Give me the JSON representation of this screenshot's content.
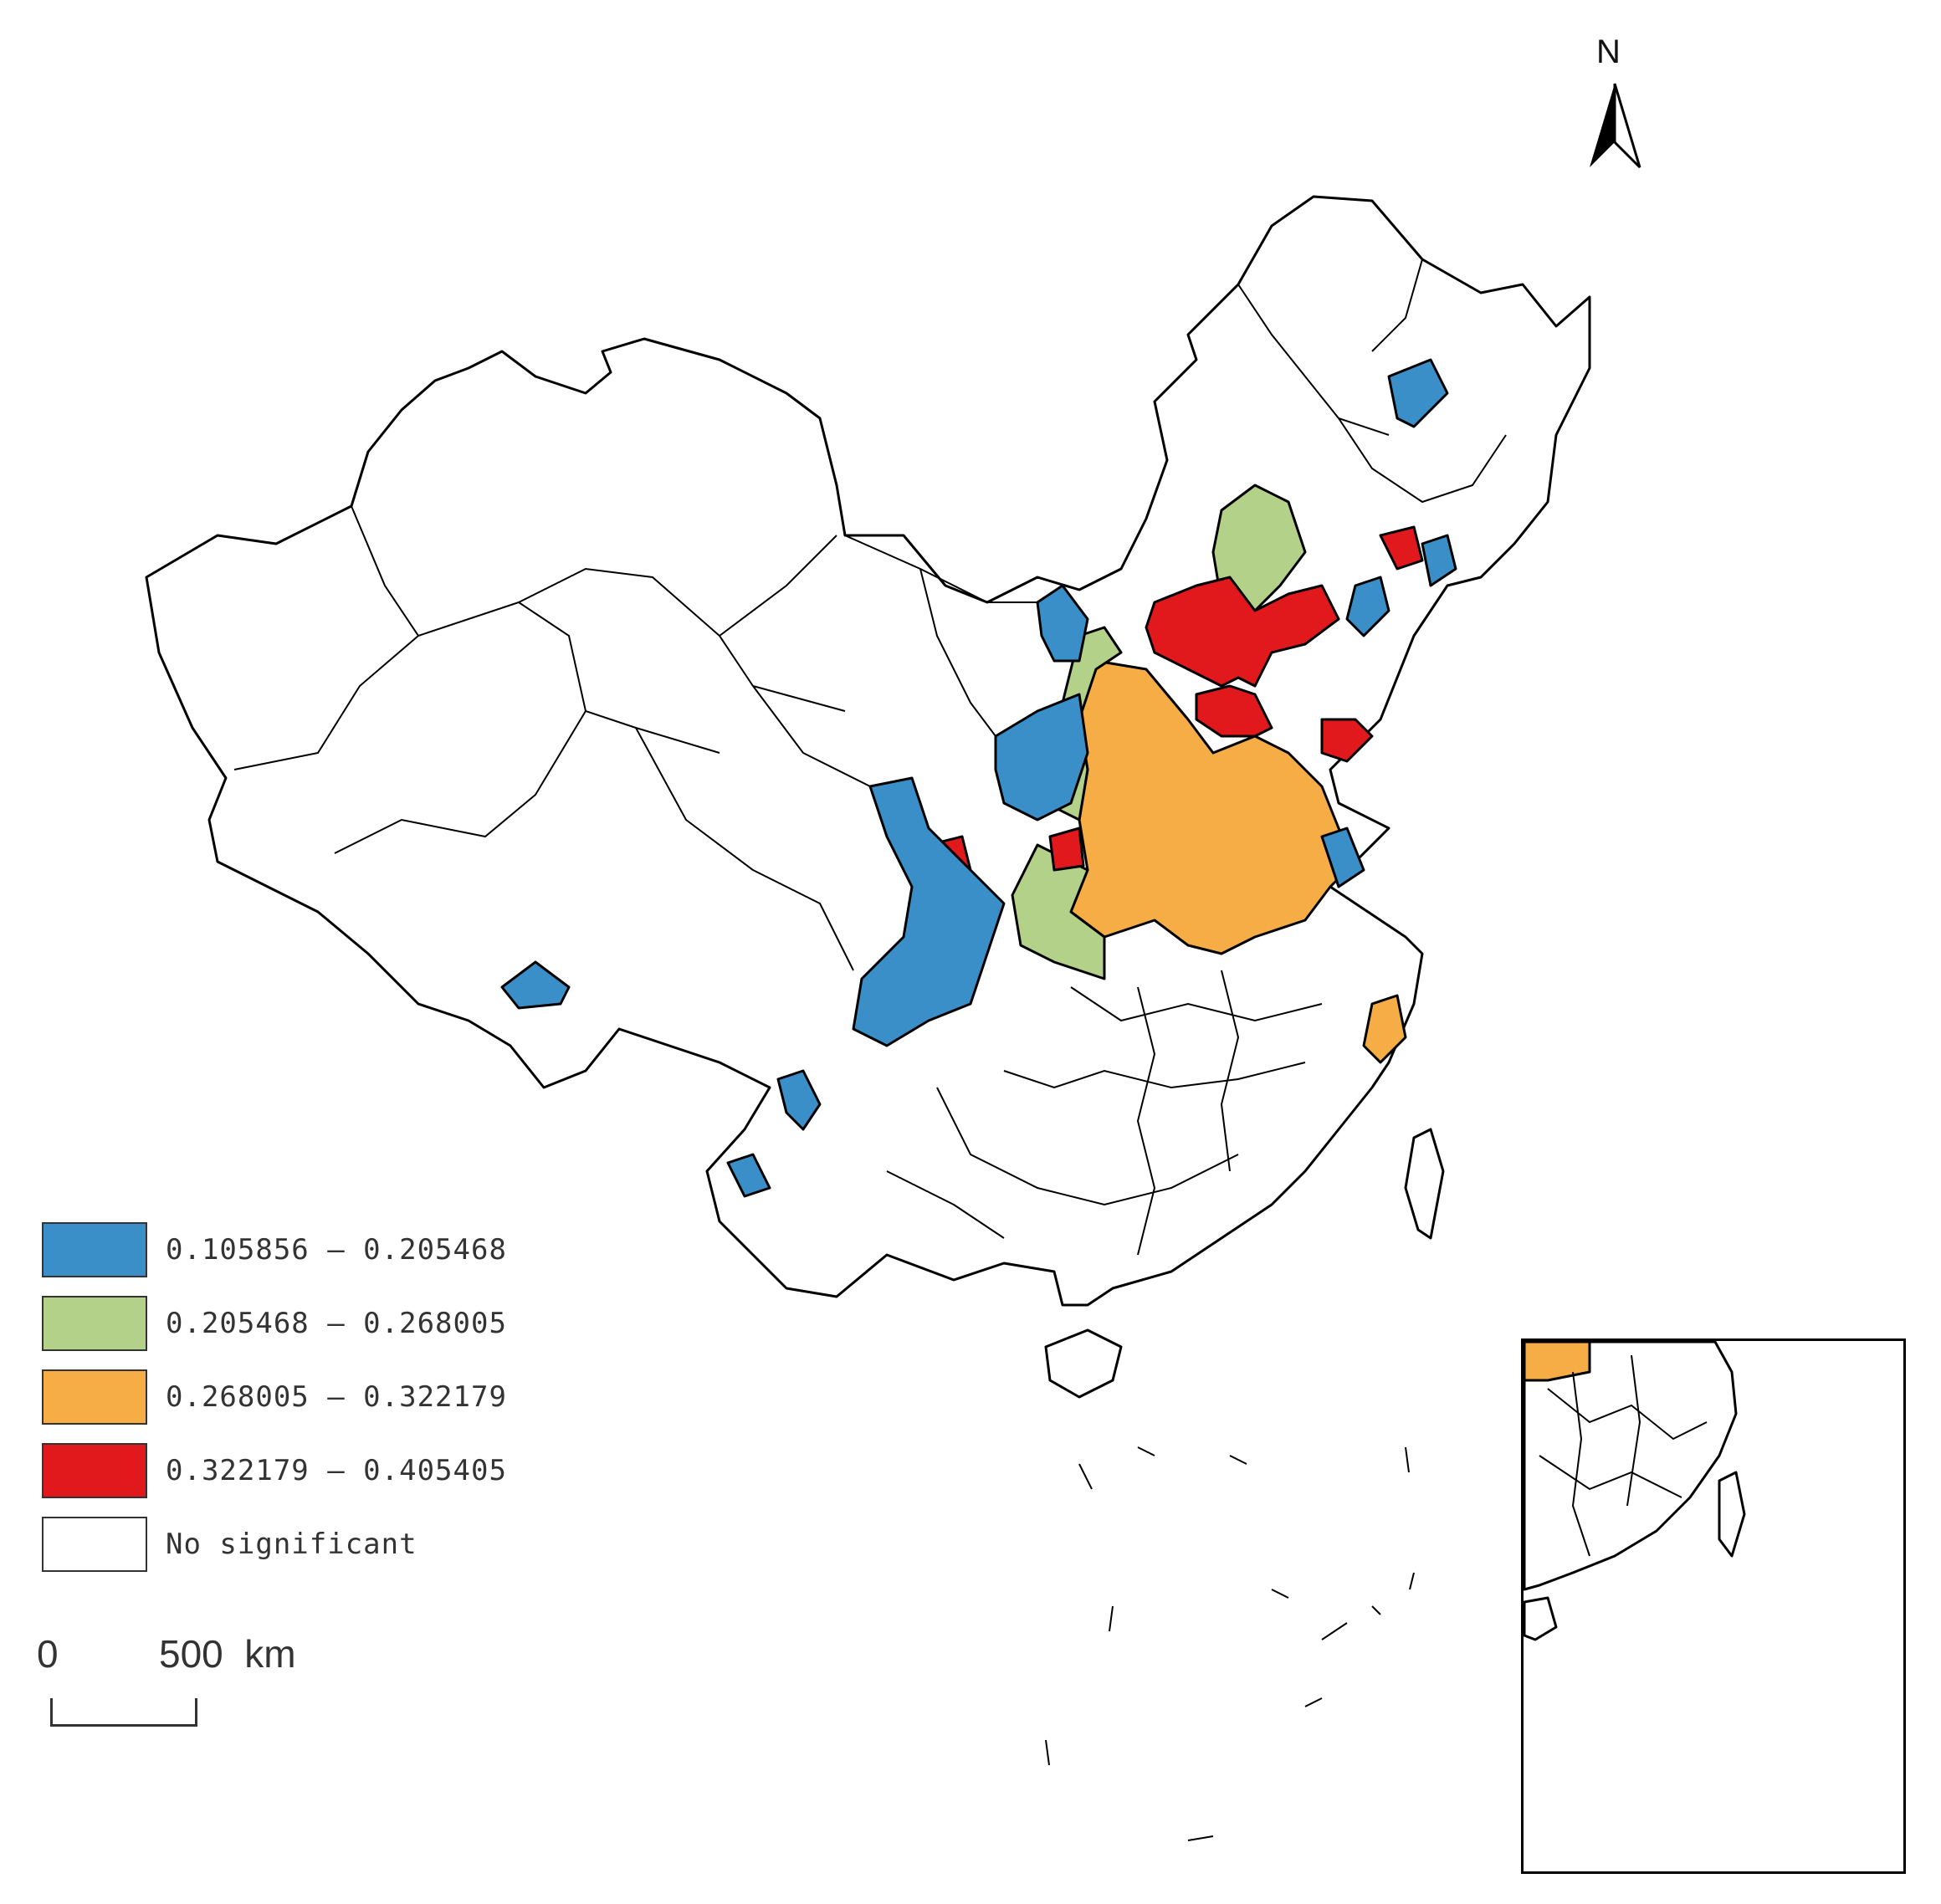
{
  "map": {
    "north_label": "N",
    "scale": {
      "zero_label": "0",
      "distance_label": "500  km"
    },
    "legend": [
      {
        "label": "0.105856 — 0.205468",
        "color": "#3b8fc9"
      },
      {
        "label": "0.205468 — 0.268005",
        "color": "#b4d18a"
      },
      {
        "label": "0.268005 — 0.322179",
        "color": "#f6ad45"
      },
      {
        "label": "0.322179 — 0.405405",
        "color": "#e2191c"
      },
      {
        "label": "No significant",
        "color": "#ffffff"
      }
    ]
  }
}
